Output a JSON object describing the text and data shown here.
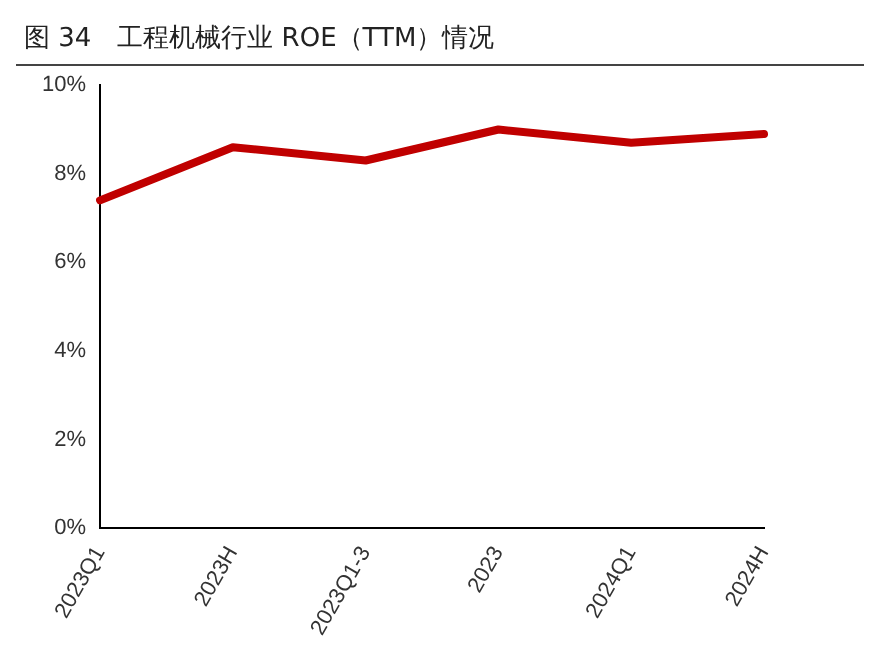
{
  "chart_data": {
    "type": "line",
    "title": "图 34　工程机械行业 ROE（TTM）情况",
    "categories": [
      "2023Q1",
      "2023H",
      "2023Q1-3",
      "2023",
      "2024Q1",
      "2024H"
    ],
    "series": [
      {
        "color": "#c00000",
        "values": [
          7.4,
          8.6,
          8.3,
          9.0,
          8.7,
          8.9
        ]
      }
    ],
    "ylim": [
      0,
      10
    ],
    "yticks": [
      {
        "value": 0,
        "label": "0%"
      },
      {
        "value": 2,
        "label": "2%"
      },
      {
        "value": 4,
        "label": "4%"
      },
      {
        "value": 6,
        "label": "6%"
      },
      {
        "value": 8,
        "label": "8%"
      },
      {
        "value": 10,
        "label": "10%"
      }
    ],
    "grid": false,
    "legend": false,
    "marker": "none",
    "line_style": "solid"
  }
}
